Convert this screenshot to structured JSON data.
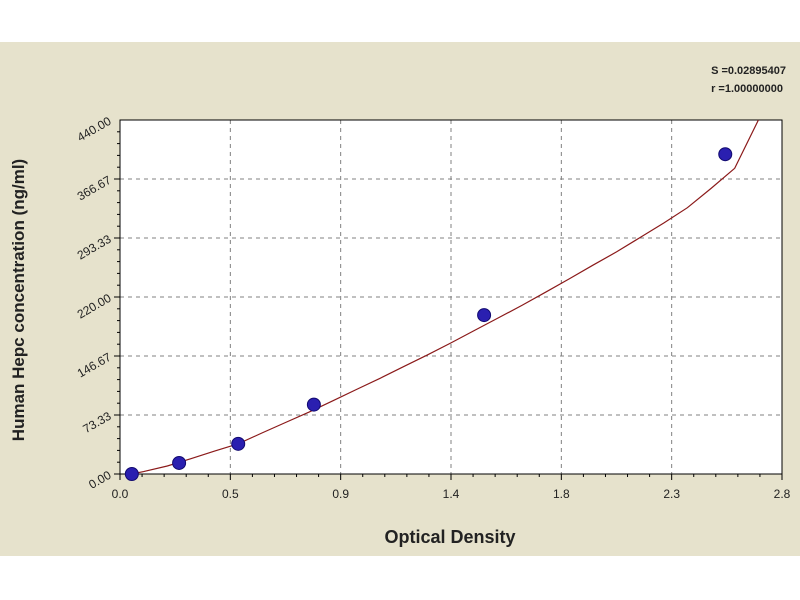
{
  "chart_data": {
    "type": "scatter",
    "title": "",
    "xlabel": "Optical Density",
    "ylabel": "Human Hepc concentration (ng/ml)",
    "xlim": [
      0.0,
      2.8
    ],
    "ylim": [
      0.0,
      440.0
    ],
    "x_tick_labels": [
      "0.0",
      "0.5",
      "0.9",
      "1.4",
      "1.8",
      "2.3",
      "2.8"
    ],
    "y_tick_labels": [
      "0.00",
      "73.33",
      "146.67",
      "220.00",
      "293.33",
      "366.67",
      "440.00"
    ],
    "grid": true,
    "stats": [
      "S =0.02895407",
      "r =1.00000000"
    ],
    "series": [
      {
        "x": [
          0.05,
          0.25,
          0.5,
          0.82,
          1.54,
          2.56
        ],
        "y": [
          0.0,
          13.75,
          37.5,
          86.25,
          197.5,
          397.5
        ]
      }
    ],
    "fit_curve": {
      "x": [
        0.05,
        0.1,
        0.2,
        0.3,
        0.4,
        0.5,
        0.6,
        0.7,
        0.8,
        0.9,
        1.0,
        1.1,
        1.2,
        1.3,
        1.4,
        1.5,
        1.6,
        1.7,
        1.8,
        1.9,
        2.0,
        2.1,
        2.2,
        2.3,
        2.4,
        2.5,
        2.6,
        2.7
      ],
      "y": [
        0.0,
        3.0,
        10.0,
        19.0,
        28.5,
        37.5,
        51.0,
        64.0,
        77.0,
        91.0,
        105.0,
        119.0,
        133.5,
        148.0,
        163.0,
        178.5,
        194.0,
        209.5,
        226.0,
        242.5,
        259.5,
        276.0,
        294.0,
        312.0,
        331.0,
        355.0,
        380.0,
        440.0
      ]
    },
    "colors": {
      "panel": "#e6e2cc",
      "plot_bg": "#ffffff",
      "grid": "#808080",
      "curve": "#8b1a1a",
      "marker": "#2a1fb0"
    }
  }
}
